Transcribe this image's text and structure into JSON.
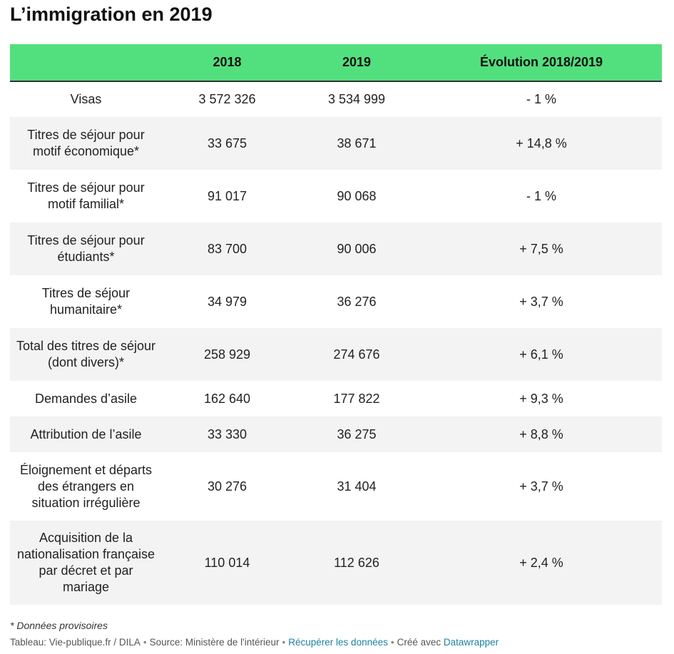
{
  "title": "L’immigration en 2019",
  "table": {
    "columns": [
      "",
      "2018",
      "2019",
      "Évolution 2018/2019"
    ],
    "rows": [
      {
        "label": "Visas",
        "v2018": "3 572 326",
        "v2019": "3 534 999",
        "evolution": "- 1 %"
      },
      {
        "label": "Titres de séjour pour motif économique*",
        "v2018": "33 675",
        "v2019": "38 671",
        "evolution": "+ 14,8 %"
      },
      {
        "label": "Titres de séjour pour motif familial*",
        "v2018": "91 017",
        "v2019": "90 068",
        "evolution": "- 1 %"
      },
      {
        "label": "Titres de séjour pour étudiants*",
        "v2018": "83 700",
        "v2019": "90 006",
        "evolution": "+ 7,5 %"
      },
      {
        "label": "Titres de séjour humanitaire*",
        "v2018": "34 979",
        "v2019": "36 276",
        "evolution": "+ 3,7 %"
      },
      {
        "label": "Total des titres de séjour (dont divers)*",
        "v2018": "258 929",
        "v2019": "274 676",
        "evolution": "+ 6,1 %"
      },
      {
        "label": "Demandes d’asile",
        "v2018": "162 640",
        "v2019": "177 822",
        "evolution": "+ 9,3 %"
      },
      {
        "label": "Attribution de l’asile",
        "v2018": "33 330",
        "v2019": "36 275",
        "evolution": "+ 8,8 %"
      },
      {
        "label": "Éloignement et départs des étrangers en situation irrégulière",
        "v2018": "30 276",
        "v2019": "31 404",
        "evolution": "+ 3,7 %"
      },
      {
        "label": "Acquisition de la nationalisation française par décret et par mariage",
        "v2018": "110 014",
        "v2019": "112 626",
        "evolution": "+ 2,4 %"
      }
    ]
  },
  "footnote": "* Données provisoires",
  "source": {
    "credit": "Tableau: Vie-publique.fr / DILA",
    "origin": "Source: Ministère de l'intérieur",
    "download_link": "Récupérer les données",
    "created_with": "Créé avec",
    "tool_link": "Datawrapper",
    "separator": "•"
  },
  "colors": {
    "header_bg": "#52e07e",
    "alt_row_bg": "#f3f3f3",
    "link": "#1d81a2"
  }
}
